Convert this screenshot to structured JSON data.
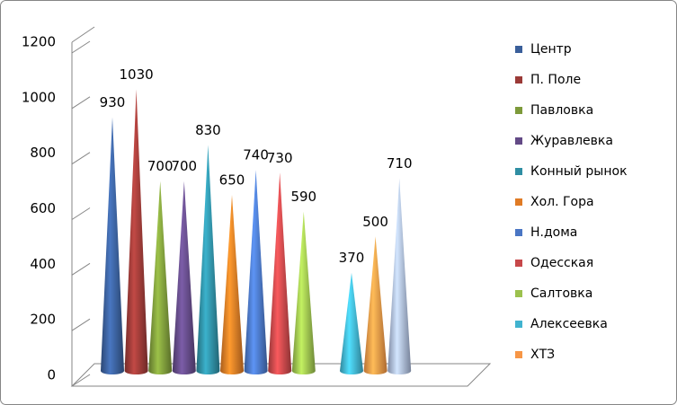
{
  "chart_data": {
    "type": "cone",
    "categories": [
      "Центр",
      "П. Поле",
      "Павловка",
      "Журавлевка",
      "Конный рынок",
      "Хол. Гора",
      "Н.дома",
      "Одесская",
      "Салтовка",
      "Алексеевка",
      "ХТЗ",
      null
    ],
    "values": [
      930,
      1030,
      700,
      700,
      830,
      650,
      740,
      730,
      590,
      370,
      500,
      710
    ],
    "colors": [
      "#3a5f9a",
      "#9b3a37",
      "#7d9a3a",
      "#634a86",
      "#2f8ea3",
      "#e07b25",
      "#4a76c4",
      "#c7484a",
      "#9cc14e",
      "#41b3cf",
      "#f79646",
      "#a9b8d9"
    ],
    "ylim": [
      0,
      1200
    ],
    "yticks": [
      0,
      200,
      400,
      600,
      800,
      1000,
      1200
    ],
    "legend": "right"
  }
}
